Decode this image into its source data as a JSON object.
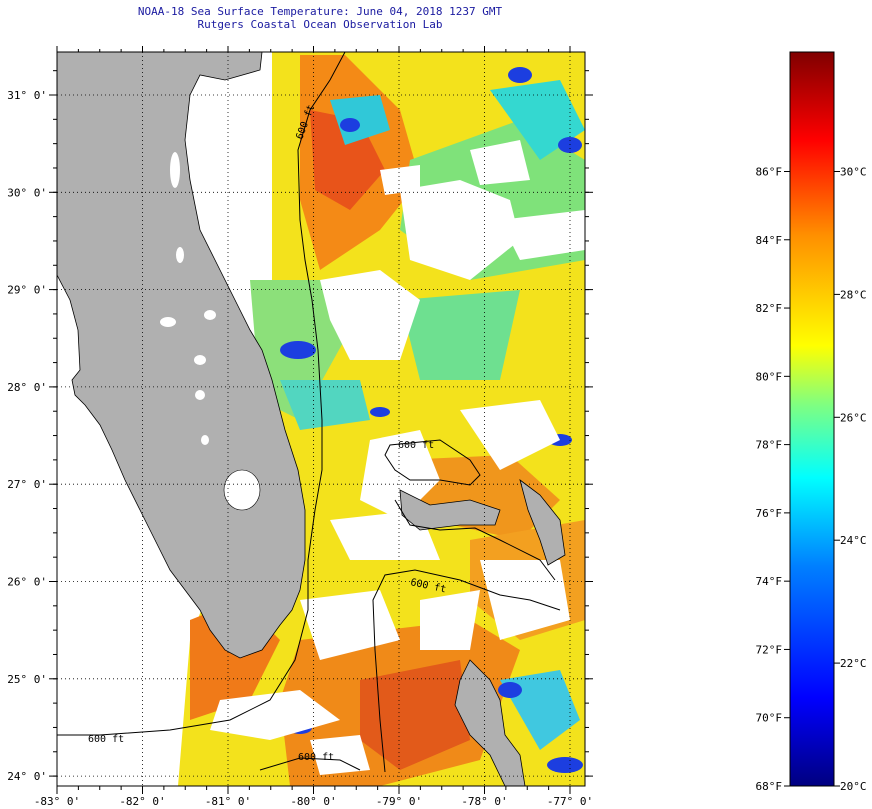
{
  "title_line1": "NOAA-18 Sea Surface Temperature:  June 04, 2018 1237 GMT",
  "title_line2": "Rutgers Coastal Ocean Observation Lab",
  "map": {
    "lon_range": [
      -83,
      -77
    ],
    "lat_range": [
      23.8,
      31.45
    ],
    "lon_tick_labels": [
      "-83° 0'",
      "-82° 0'",
      "-81° 0'",
      "-80° 0'",
      "-79° 0'",
      "-78° 0'",
      "-77° 0'"
    ],
    "lat_tick_labels": [
      "24° 0'",
      "25° 0'",
      "26° 0'",
      "27° 0'",
      "28° 0'",
      "29° 0'",
      "30° 0'",
      "31° 0'"
    ],
    "contour_labels": [
      "600 ft",
      "600 ft",
      "600 ft",
      "600 ft",
      "600 ft"
    ],
    "grid": "dotted",
    "land_color": "#b0b0b0",
    "cloud_color": "#ffffff"
  },
  "colorbar": {
    "fahrenheit_labels": [
      "86°F",
      "84°F",
      "82°F",
      "80°F",
      "78°F",
      "76°F",
      "74°F",
      "72°F",
      "70°F",
      "68°F"
    ],
    "celsius_labels": [
      "30°C",
      "28°C",
      "26°C",
      "24°C",
      "22°C",
      "20°C"
    ],
    "colors": [
      "#000080",
      "#0000ff",
      "#0080ff",
      "#00ffff",
      "#80ff80",
      "#ffff00",
      "#ff8000",
      "#ff0000",
      "#800000"
    ]
  }
}
